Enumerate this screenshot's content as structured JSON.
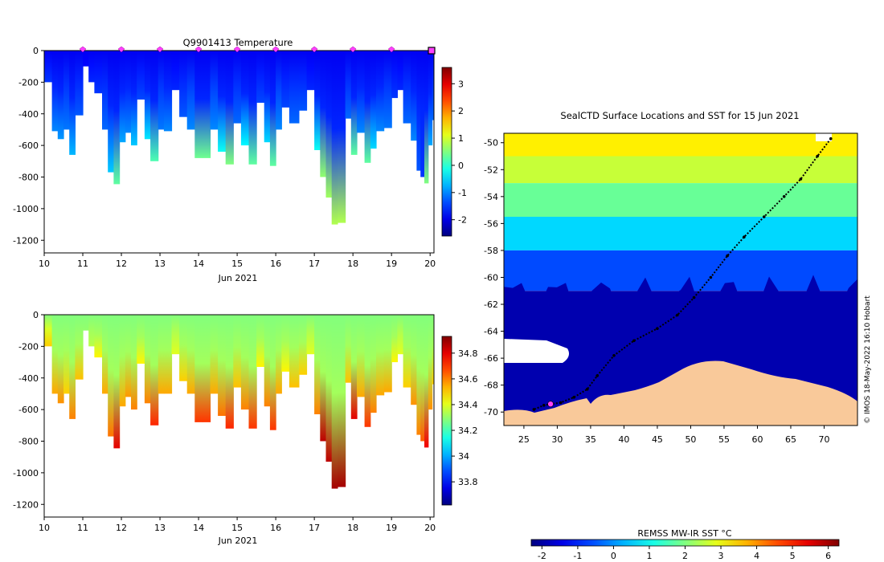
{
  "colors": {
    "background": "#ffffff",
    "land": "#f9c99a",
    "ice_white": "#ffffff",
    "track": "#000000",
    "marker": "#ff40ff"
  },
  "chart_data": [
    {
      "id": "temperature",
      "type": "heatmap",
      "title": "Q9901413  Temperature",
      "xlabel": "Jun 2021",
      "x_ticks": [
        "10",
        "11",
        "12",
        "13",
        "14",
        "15",
        "16",
        "17",
        "18",
        "19",
        "20"
      ],
      "xlim": [
        10,
        20.1
      ],
      "ylim": [
        -1280,
        0
      ],
      "y_ticks": [
        "0",
        "-200",
        "-400",
        "-600",
        "-800",
        "-1000",
        "-1200"
      ],
      "y_tick_values": [
        0,
        -200,
        -400,
        -600,
        -800,
        -1000,
        -1200
      ],
      "colorbar": {
        "ticks": [
          "3",
          "2",
          "1",
          "0",
          "-1",
          "-2"
        ],
        "tick_values": [
          3,
          2,
          1,
          0,
          -1,
          -2
        ],
        "range": [
          -2.6,
          3.6
        ],
        "palette": "jet"
      },
      "surface_markers_days": [
        11,
        12,
        13,
        14,
        15,
        16,
        17,
        18,
        19
      ],
      "profiles": [
        {
          "day": 10.0,
          "depth": -200,
          "deep": -1.5
        },
        {
          "day": 10.2,
          "depth": -510,
          "deep": -1.0
        },
        {
          "day": 10.35,
          "depth": -560,
          "deep": -0.9
        },
        {
          "day": 10.5,
          "depth": -500,
          "deep": -1.1
        },
        {
          "day": 10.65,
          "depth": -660,
          "deep": -0.7
        },
        {
          "day": 10.8,
          "depth": -410,
          "deep": -1.3
        },
        {
          "day": 11.0,
          "depth": -100,
          "deep": -1.8
        },
        {
          "day": 11.15,
          "depth": -200,
          "deep": -1.6
        },
        {
          "day": 11.3,
          "depth": -270,
          "deep": -1.5
        },
        {
          "day": 11.5,
          "depth": -500,
          "deep": -1.2
        },
        {
          "day": 11.65,
          "depth": -770,
          "deep": -0.6
        },
        {
          "day": 11.8,
          "depth": -845,
          "deep": 0.3
        },
        {
          "day": 11.95,
          "depth": -580,
          "deep": -0.8
        },
        {
          "day": 12.1,
          "depth": -520,
          "deep": -1.0
        },
        {
          "day": 12.25,
          "depth": -600,
          "deep": -0.6
        },
        {
          "day": 12.4,
          "depth": -310,
          "deep": -1.4
        },
        {
          "day": 12.6,
          "depth": -560,
          "deep": -0.4
        },
        {
          "day": 12.75,
          "depth": -700,
          "deep": 0.2
        },
        {
          "day": 12.95,
          "depth": -500,
          "deep": -1.1
        },
        {
          "day": 13.1,
          "depth": -510,
          "deep": -1.0
        },
        {
          "day": 13.3,
          "depth": -250,
          "deep": -1.6
        },
        {
          "day": 13.5,
          "depth": -420,
          "deep": -1.3
        },
        {
          "day": 13.7,
          "depth": -500,
          "deep": -1.0
        },
        {
          "day": 13.9,
          "depth": -680,
          "deep": 0.4
        },
        {
          "day": 14.1,
          "depth": -680,
          "deep": 0.4
        },
        {
          "day": 14.3,
          "depth": -500,
          "deep": -1.0
        },
        {
          "day": 14.5,
          "depth": -640,
          "deep": -0.2
        },
        {
          "day": 14.7,
          "depth": -720,
          "deep": 0.5
        },
        {
          "day": 14.9,
          "depth": -460,
          "deep": -1.2
        },
        {
          "day": 15.1,
          "depth": -600,
          "deep": -0.3
        },
        {
          "day": 15.3,
          "depth": -720,
          "deep": 0.3
        },
        {
          "day": 15.5,
          "depth": -330,
          "deep": -1.4
        },
        {
          "day": 15.7,
          "depth": -580,
          "deep": -0.5
        },
        {
          "day": 15.85,
          "depth": -730,
          "deep": 0.3
        },
        {
          "day": 16.0,
          "depth": -500,
          "deep": -1.0
        },
        {
          "day": 16.15,
          "depth": -360,
          "deep": -1.4
        },
        {
          "day": 16.35,
          "depth": -460,
          "deep": -1.2
        },
        {
          "day": 16.6,
          "depth": -380,
          "deep": -1.3
        },
        {
          "day": 16.8,
          "depth": -250,
          "deep": -1.6
        },
        {
          "day": 17.0,
          "depth": -630,
          "deep": -0.2
        },
        {
          "day": 17.15,
          "depth": -800,
          "deep": 0.6
        },
        {
          "day": 17.3,
          "depth": -930,
          "deep": 0.7
        },
        {
          "day": 17.45,
          "depth": -1100,
          "deep": 0.8
        },
        {
          "day": 17.6,
          "depth": -1090,
          "deep": 0.8
        },
        {
          "day": 17.8,
          "depth": -430,
          "deep": -1.2
        },
        {
          "day": 17.95,
          "depth": -660,
          "deep": 0.3
        },
        {
          "day": 18.1,
          "depth": -520,
          "deep": -1.0
        },
        {
          "day": 18.3,
          "depth": -710,
          "deep": 0.3
        },
        {
          "day": 18.45,
          "depth": -620,
          "deep": -0.5
        },
        {
          "day": 18.6,
          "depth": -510,
          "deep": -1.0
        },
        {
          "day": 18.8,
          "depth": -490,
          "deep": -1.1
        },
        {
          "day": 19.0,
          "depth": -300,
          "deep": -1.5
        },
        {
          "day": 19.15,
          "depth": -250,
          "deep": -1.6
        },
        {
          "day": 19.3,
          "depth": -460,
          "deep": -1.2
        },
        {
          "day": 19.5,
          "depth": -570,
          "deep": -1.0
        },
        {
          "day": 19.65,
          "depth": -760,
          "deep": -1.3
        },
        {
          "day": 19.75,
          "depth": -800,
          "deep": -1.5
        },
        {
          "day": 19.85,
          "depth": -840,
          "deep": 0.5
        },
        {
          "day": 19.95,
          "depth": -600,
          "deep": -0.8
        },
        {
          "day": 20.05,
          "depth": -440,
          "deep": -1.2
        }
      ]
    },
    {
      "id": "salinity",
      "type": "heatmap",
      "title": "",
      "xlabel": "Jun 2021",
      "x_ticks": [
        "10",
        "11",
        "12",
        "13",
        "14",
        "15",
        "16",
        "17",
        "18",
        "19",
        "20"
      ],
      "xlim": [
        10,
        20.1
      ],
      "ylim": [
        -1280,
        0
      ],
      "y_ticks": [
        "0",
        "-200",
        "-400",
        "-600",
        "-800",
        "-1000",
        "-1200"
      ],
      "y_tick_values": [
        0,
        -200,
        -400,
        -600,
        -800,
        -1000,
        -1200
      ],
      "colorbar": {
        "ticks": [
          "34.8",
          "34.6",
          "34.4",
          "34.2",
          "34",
          "33.8"
        ],
        "tick_values": [
          34.8,
          34.6,
          34.4,
          34.2,
          34.0,
          33.8
        ],
        "range": [
          33.62,
          34.93
        ],
        "palette": "jet"
      },
      "surface_salinity": 34.28,
      "profiles": [
        {
          "day": 10.0,
          "depth": -200,
          "deep": 34.5
        },
        {
          "day": 10.2,
          "depth": -500,
          "deep": 34.55
        },
        {
          "day": 10.35,
          "depth": -560,
          "deep": 34.58
        },
        {
          "day": 10.5,
          "depth": -500,
          "deep": 34.5
        },
        {
          "day": 10.65,
          "depth": -660,
          "deep": 34.6
        },
        {
          "day": 10.8,
          "depth": -410,
          "deep": 34.52
        },
        {
          "day": 11.0,
          "depth": -100,
          "deep": 34.3
        },
        {
          "day": 11.15,
          "depth": -200,
          "deep": 34.35
        },
        {
          "day": 11.3,
          "depth": -270,
          "deep": 34.45
        },
        {
          "day": 11.5,
          "depth": -500,
          "deep": 34.55
        },
        {
          "day": 11.65,
          "depth": -770,
          "deep": 34.62
        },
        {
          "day": 11.8,
          "depth": -845,
          "deep": 34.8
        },
        {
          "day": 11.95,
          "depth": -580,
          "deep": 34.55
        },
        {
          "day": 12.1,
          "depth": -520,
          "deep": 34.57
        },
        {
          "day": 12.25,
          "depth": -600,
          "deep": 34.6
        },
        {
          "day": 12.4,
          "depth": -310,
          "deep": 34.45
        },
        {
          "day": 12.6,
          "depth": -560,
          "deep": 34.6
        },
        {
          "day": 12.75,
          "depth": -700,
          "deep": 34.72
        },
        {
          "day": 12.95,
          "depth": -500,
          "deep": 34.55
        },
        {
          "day": 13.1,
          "depth": -500,
          "deep": 34.55
        },
        {
          "day": 13.3,
          "depth": -250,
          "deep": 34.4
        },
        {
          "day": 13.5,
          "depth": -420,
          "deep": 34.5
        },
        {
          "day": 13.7,
          "depth": -500,
          "deep": 34.55
        },
        {
          "day": 13.9,
          "depth": -680,
          "deep": 34.7
        },
        {
          "day": 14.1,
          "depth": -680,
          "deep": 34.7
        },
        {
          "day": 14.3,
          "depth": -500,
          "deep": 34.55
        },
        {
          "day": 14.5,
          "depth": -640,
          "deep": 34.62
        },
        {
          "day": 14.7,
          "depth": -720,
          "deep": 34.72
        },
        {
          "day": 14.9,
          "depth": -460,
          "deep": 34.52
        },
        {
          "day": 15.1,
          "depth": -600,
          "deep": 34.6
        },
        {
          "day": 15.3,
          "depth": -720,
          "deep": 34.7
        },
        {
          "day": 15.5,
          "depth": -330,
          "deep": 34.45
        },
        {
          "day": 15.7,
          "depth": -580,
          "deep": 34.6
        },
        {
          "day": 15.85,
          "depth": -730,
          "deep": 34.7
        },
        {
          "day": 16.0,
          "depth": -500,
          "deep": 34.55
        },
        {
          "day": 16.15,
          "depth": -360,
          "deep": 34.45
        },
        {
          "day": 16.35,
          "depth": -460,
          "deep": 34.52
        },
        {
          "day": 16.6,
          "depth": -380,
          "deep": 34.5
        },
        {
          "day": 16.8,
          "depth": -250,
          "deep": 34.4
        },
        {
          "day": 17.0,
          "depth": -630,
          "deep": 34.6
        },
        {
          "day": 17.15,
          "depth": -800,
          "deep": 34.85
        },
        {
          "day": 17.3,
          "depth": -930,
          "deep": 34.85
        },
        {
          "day": 17.45,
          "depth": -1100,
          "deep": 34.88
        },
        {
          "day": 17.6,
          "depth": -1090,
          "deep": 34.88
        },
        {
          "day": 17.8,
          "depth": -430,
          "deep": 34.52
        },
        {
          "day": 17.95,
          "depth": -660,
          "deep": 34.8
        },
        {
          "day": 18.1,
          "depth": -520,
          "deep": 34.55
        },
        {
          "day": 18.3,
          "depth": -710,
          "deep": 34.7
        },
        {
          "day": 18.45,
          "depth": -620,
          "deep": 34.6
        },
        {
          "day": 18.6,
          "depth": -510,
          "deep": 34.55
        },
        {
          "day": 18.8,
          "depth": -490,
          "deep": 34.55
        },
        {
          "day": 19.0,
          "depth": -300,
          "deep": 34.45
        },
        {
          "day": 19.15,
          "depth": -250,
          "deep": 34.4
        },
        {
          "day": 19.3,
          "depth": -460,
          "deep": 34.5
        },
        {
          "day": 19.5,
          "depth": -570,
          "deep": 34.58
        },
        {
          "day": 19.65,
          "depth": -760,
          "deep": 34.6
        },
        {
          "day": 19.75,
          "depth": -800,
          "deep": 34.65
        },
        {
          "day": 19.85,
          "depth": -840,
          "deep": 34.78
        },
        {
          "day": 19.95,
          "depth": -600,
          "deep": 34.58
        },
        {
          "day": 20.05,
          "depth": -440,
          "deep": 34.5
        }
      ]
    },
    {
      "id": "sst_map",
      "type": "heatmap",
      "title": "SealCTD Surface Locations and SST for 15 Jun 2021",
      "x_ticks": [
        "25",
        "30",
        "35",
        "40",
        "45",
        "50",
        "55",
        "60",
        "65",
        "70"
      ],
      "x_tick_values": [
        25,
        30,
        35,
        40,
        45,
        50,
        55,
        60,
        65,
        70
      ],
      "xlim": [
        22,
        75
      ],
      "y_ticks": [
        "-50",
        "-52",
        "-54",
        "-56",
        "-58",
        "-60",
        "-62",
        "-64",
        "-66",
        "-68",
        "-70"
      ],
      "y_tick_values": [
        -50,
        -52,
        -54,
        -56,
        -58,
        -60,
        -62,
        -64,
        -66,
        -68,
        -70
      ],
      "ylim": [
        -71,
        -49.3
      ],
      "sst_bands": [
        {
          "lat_top": -49.3,
          "lat_bottom": -51,
          "sst": 3.2
        },
        {
          "lat_top": -51,
          "lat_bottom": -53,
          "sst": 2.6
        },
        {
          "lat_top": -53,
          "lat_bottom": -55.5,
          "sst": 1.8
        },
        {
          "lat_top": -55.5,
          "lat_bottom": -58,
          "sst": 0.6
        },
        {
          "lat_top": -58,
          "lat_bottom": -61,
          "sst": -0.6
        },
        {
          "lat_top": -61,
          "lat_bottom": -71,
          "sst": -1.9
        }
      ],
      "track": [
        [
          71,
          -49.7
        ],
        [
          69,
          -51
        ],
        [
          66.5,
          -52.7
        ],
        [
          64,
          -54
        ],
        [
          61,
          -55.5
        ],
        [
          58,
          -57
        ],
        [
          55.5,
          -58.4
        ],
        [
          53,
          -60
        ],
        [
          50.5,
          -61.5
        ],
        [
          48,
          -62.8
        ],
        [
          45,
          -63.8
        ],
        [
          41.5,
          -64.7
        ],
        [
          38.5,
          -65.8
        ],
        [
          36,
          -67.3
        ],
        [
          34.5,
          -68.3
        ],
        [
          32.5,
          -68.9
        ],
        [
          30.5,
          -69.3
        ],
        [
          28,
          -69.5
        ],
        [
          26.5,
          -69.8
        ]
      ],
      "current_position": [
        29,
        -69.4
      ],
      "colorbar": {
        "label": "REMSS MW-IR SST °C",
        "ticks": [
          "-2",
          "-1",
          "0",
          "1",
          "2",
          "3",
          "4",
          "5",
          "6"
        ],
        "tick_values": [
          -2,
          -1,
          0,
          1,
          2,
          3,
          4,
          5,
          6
        ],
        "range": [
          -2.3,
          6.3
        ],
        "palette": "jet"
      },
      "credit": "© IMOS 18-May-2022 16:10 Hobart"
    }
  ]
}
